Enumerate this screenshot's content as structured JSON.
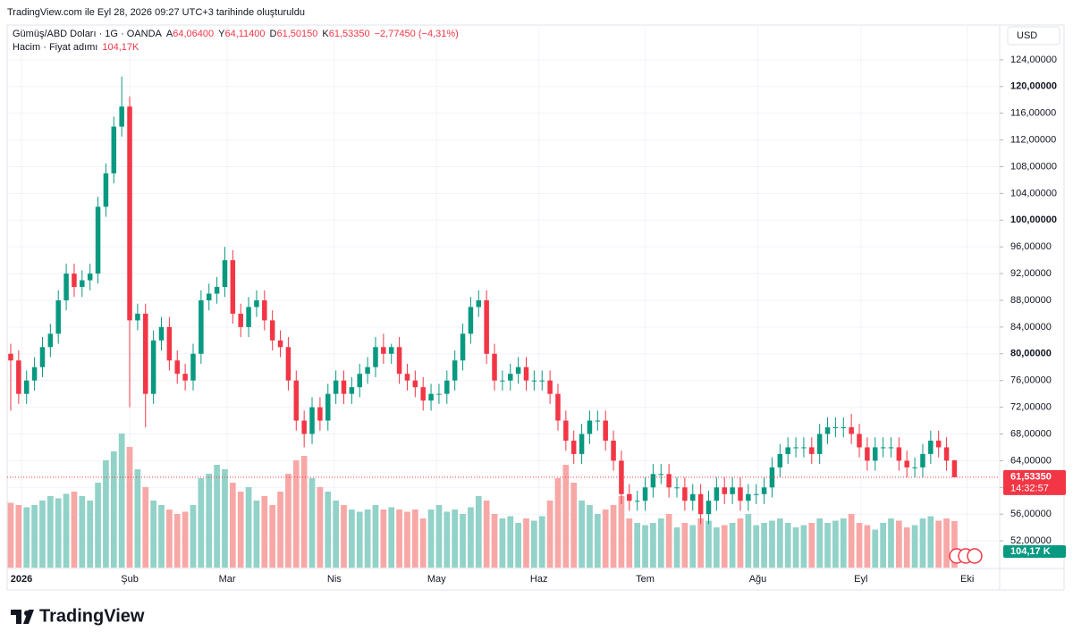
{
  "header": {
    "created": "TradingView.com ile Eyl 28, 2026 09:27 UTC+3 tarihinde oluşturuldu",
    "logo": "TradingView"
  },
  "chart_data": {
    "type": "candlestick",
    "symbol": "Gümüş/ABD Doları · 1G · OANDA",
    "ohlc_labels": [
      {
        "key": "A",
        "value": "64,06400"
      },
      {
        "key": "Y",
        "value": "64,11400"
      },
      {
        "key": "D",
        "value": "61,50150"
      },
      {
        "key": "K",
        "value": "61,53350"
      }
    ],
    "change": "−2,77450 (−4,31%)",
    "volume_title": "Hacim · Fiyat adımı",
    "volume_value": "104,17K",
    "currency": "USD",
    "last_price_label": "61,53350",
    "countdown": "14:32:57",
    "volume_label": "104,17 K",
    "up_color": "#089981",
    "down_color": "#f23645",
    "volume_up_color": "#92d2c8",
    "volume_down_color": "#f7a8a6",
    "open": [
      80,
      79,
      74,
      76,
      78,
      81,
      83,
      88,
      92,
      90,
      91,
      92,
      102,
      107,
      114,
      117,
      85,
      86,
      74,
      82,
      84,
      79,
      77,
      76,
      80,
      88,
      89,
      90,
      94,
      86,
      84,
      87,
      88,
      85,
      82,
      81,
      76,
      70,
      68,
      72,
      70,
      74,
      76,
      74,
      75,
      77,
      78,
      81,
      80,
      81,
      77,
      76,
      75,
      73,
      74,
      74,
      76,
      79,
      83,
      87,
      88,
      80,
      76,
      76,
      77,
      78,
      76,
      76,
      76,
      74,
      70,
      67,
      65,
      68,
      70,
      70,
      67,
      64,
      59,
      58,
      58,
      60,
      62,
      62,
      60,
      60,
      58,
      59,
      56,
      58,
      60,
      59,
      60,
      58,
      59,
      59,
      60,
      63,
      65,
      66,
      66,
      66,
      65,
      68,
      69,
      69,
      69,
      68,
      66,
      64,
      66,
      66,
      66,
      64,
      63,
      63,
      65,
      67,
      66,
      64.064
    ],
    "high": [
      81.5,
      80.5,
      77.5,
      79.5,
      82.5,
      84.5,
      89.5,
      93.5,
      93.5,
      92.5,
      93.5,
      103.5,
      108.5,
      115.5,
      121.5,
      118.5,
      87.5,
      87.5,
      83.5,
      85.5,
      85.5,
      80.5,
      78.5,
      81.5,
      89.5,
      90.5,
      91.5,
      96,
      95.5,
      87.5,
      88.5,
      89.5,
      89.5,
      86.5,
      83.5,
      82.5,
      77.5,
      71.5,
      73.5,
      73.5,
      75.5,
      77.5,
      77.5,
      76.5,
      78.5,
      79.5,
      82.5,
      83,
      81.5,
      82.5,
      78.5,
      77.5,
      76.5,
      75.5,
      75.5,
      77.5,
      80.5,
      84.5,
      88.5,
      89.5,
      89.5,
      81.5,
      77.5,
      78.5,
      79.5,
      79.5,
      77.5,
      77.5,
      77.5,
      75.5,
      71.5,
      68.5,
      69.5,
      71.5,
      71.5,
      71.5,
      68.5,
      65.5,
      60.5,
      59.5,
      61.5,
      63.5,
      63.5,
      63.5,
      61.5,
      61.5,
      60.5,
      60.5,
      59.5,
      61.5,
      61.5,
      61.5,
      61.5,
      60.5,
      60.5,
      61.5,
      64.5,
      66.5,
      67.5,
      67.5,
      67.5,
      67.5,
      69.5,
      70.5,
      70.5,
      70.5,
      71,
      69.5,
      67.5,
      67.5,
      67.5,
      67.5,
      67.5,
      65.5,
      64.5,
      66.5,
      68.5,
      68.5,
      67.5,
      64.114
    ],
    "low": [
      71.5,
      72.5,
      72.5,
      74.5,
      76.5,
      79.5,
      81.5,
      86.5,
      88.5,
      88.5,
      89.5,
      90.5,
      100.5,
      105.5,
      112.5,
      72,
      83.5,
      69,
      72.5,
      80.5,
      77.5,
      75.5,
      74.5,
      74.5,
      78.5,
      86.5,
      87.5,
      88.5,
      84.5,
      82.5,
      82.5,
      85.5,
      83.5,
      80.5,
      79.5,
      74.5,
      68.5,
      66,
      66.5,
      68.5,
      68.5,
      72.5,
      72.5,
      72.5,
      73.5,
      75.5,
      76.5,
      78.5,
      78.5,
      75.5,
      74.5,
      73.5,
      71.5,
      71.5,
      72.5,
      72.5,
      74.5,
      77.5,
      81.5,
      85.5,
      78.5,
      74.5,
      74.5,
      74.5,
      75.5,
      74.5,
      74.5,
      74.5,
      72.5,
      68.5,
      65.5,
      63.5,
      63.5,
      66.5,
      68.5,
      65.5,
      62.5,
      57.5,
      56.5,
      56.5,
      56.5,
      58.5,
      60.5,
      58.5,
      58.5,
      56.5,
      56.5,
      54.5,
      54.5,
      56.5,
      57.5,
      57.5,
      56.5,
      56.5,
      57.5,
      57.5,
      58.5,
      61.5,
      63.5,
      64.5,
      64.5,
      63.5,
      63.5,
      66.5,
      67.5,
      67.5,
      66.5,
      64.5,
      62.5,
      62.5,
      64.5,
      64.5,
      62.5,
      61.5,
      61.5,
      61.5,
      63.5,
      64.5,
      62.5,
      61.5015
    ],
    "close": [
      79,
      74,
      76,
      78,
      81,
      83,
      88,
      92,
      90,
      91,
      92,
      102,
      107,
      114,
      117,
      85,
      86,
      74,
      82,
      84,
      79,
      77,
      76,
      80,
      88,
      89,
      90,
      94,
      86,
      84,
      87,
      88,
      85,
      82,
      81,
      76,
      70,
      68,
      72,
      70,
      74,
      76,
      74,
      75,
      77,
      78,
      81,
      80,
      81,
      77,
      76,
      75,
      73,
      74,
      74,
      76,
      79,
      83,
      87,
      88,
      80,
      76,
      76,
      77,
      78,
      76,
      76,
      76,
      74,
      70,
      67,
      65,
      68,
      70,
      70,
      67,
      64,
      59,
      58,
      58,
      60,
      62,
      62,
      60,
      60,
      58,
      59,
      56,
      58,
      60,
      59,
      60,
      58,
      59,
      59,
      60,
      63,
      65,
      66,
      66,
      66,
      65,
      68,
      69,
      69,
      69,
      68,
      66,
      64,
      66,
      66,
      66,
      64,
      63,
      63,
      65,
      67,
      66,
      64,
      61.5335
    ],
    "volume": [
      145000,
      140000,
      135000,
      140000,
      150000,
      160000,
      155000,
      165000,
      170000,
      160000,
      150000,
      190000,
      240000,
      260000,
      300000,
      270000,
      220000,
      180000,
      150000,
      140000,
      130000,
      120000,
      125000,
      140000,
      200000,
      210000,
      230000,
      220000,
      190000,
      170000,
      180000,
      150000,
      160000,
      140000,
      170000,
      210000,
      240000,
      250000,
      200000,
      180000,
      170000,
      150000,
      140000,
      130000,
      125000,
      130000,
      140000,
      130000,
      135000,
      130000,
      125000,
      130000,
      110000,
      130000,
      140000,
      125000,
      130000,
      120000,
      135000,
      160000,
      150000,
      120000,
      110000,
      115000,
      100000,
      110000,
      105000,
      115000,
      150000,
      200000,
      230000,
      190000,
      150000,
      140000,
      120000,
      130000,
      140000,
      160000,
      110000,
      100000,
      95000,
      100000,
      110000,
      120000,
      90000,
      100000,
      95000,
      110000,
      105000,
      90000,
      95000,
      100000,
      110000,
      120000,
      95000,
      100000,
      105000,
      110000,
      100000,
      90000,
      95000,
      100000,
      110000,
      100000,
      105000,
      110000,
      120000,
      100000,
      95000,
      85000,
      100000,
      110000,
      105000,
      90000,
      95000,
      110000,
      115000,
      105000,
      110000,
      104170
    ],
    "vlim": [
      0,
      400000
    ],
    "ylim": [
      48,
      129.2
    ],
    "yticks": [
      {
        "value": 52,
        "label": "52,00000"
      },
      {
        "value": 56,
        "label": "56,00000"
      },
      {
        "value": 60,
        "label": "60,00000"
      },
      {
        "value": 64,
        "label": "64,00000"
      },
      {
        "value": 68,
        "label": "68,00000"
      },
      {
        "value": 72,
        "label": "72,00000"
      },
      {
        "value": 76,
        "label": "76,00000"
      },
      {
        "value": 80,
        "label": "80,00000"
      },
      {
        "value": 84,
        "label": "84,00000"
      },
      {
        "value": 88,
        "label": "88,00000"
      },
      {
        "value": 92,
        "label": "92,00000"
      },
      {
        "value": 96,
        "label": "96,00000"
      },
      {
        "value": 100,
        "label": "100,00000"
      },
      {
        "value": 104,
        "label": "104,00000"
      },
      {
        "value": 108,
        "label": "108,00000"
      },
      {
        "value": 112,
        "label": "112,00000"
      },
      {
        "value": 116,
        "label": "116,00000"
      },
      {
        "value": 120,
        "label": "120,00000"
      },
      {
        "value": 124,
        "label": "124,00000"
      }
    ],
    "xlim": [
      -0.45,
      124.7
    ],
    "xticks": [
      {
        "value": 1.35,
        "label": "2026"
      },
      {
        "value": 15,
        "label": "Şub"
      },
      {
        "value": 27.3,
        "label": "Mar"
      },
      {
        "value": 40.8,
        "label": "Nis"
      },
      {
        "value": 53.7,
        "label": "May"
      },
      {
        "value": 66.6,
        "label": "Haz"
      },
      {
        "value": 80,
        "label": "Tem"
      },
      {
        "value": 94.2,
        "label": "Ağu"
      },
      {
        "value": 107.2,
        "label": "Eyl"
      },
      {
        "value": 120.6,
        "label": "Eki"
      }
    ],
    "grid": true
  }
}
